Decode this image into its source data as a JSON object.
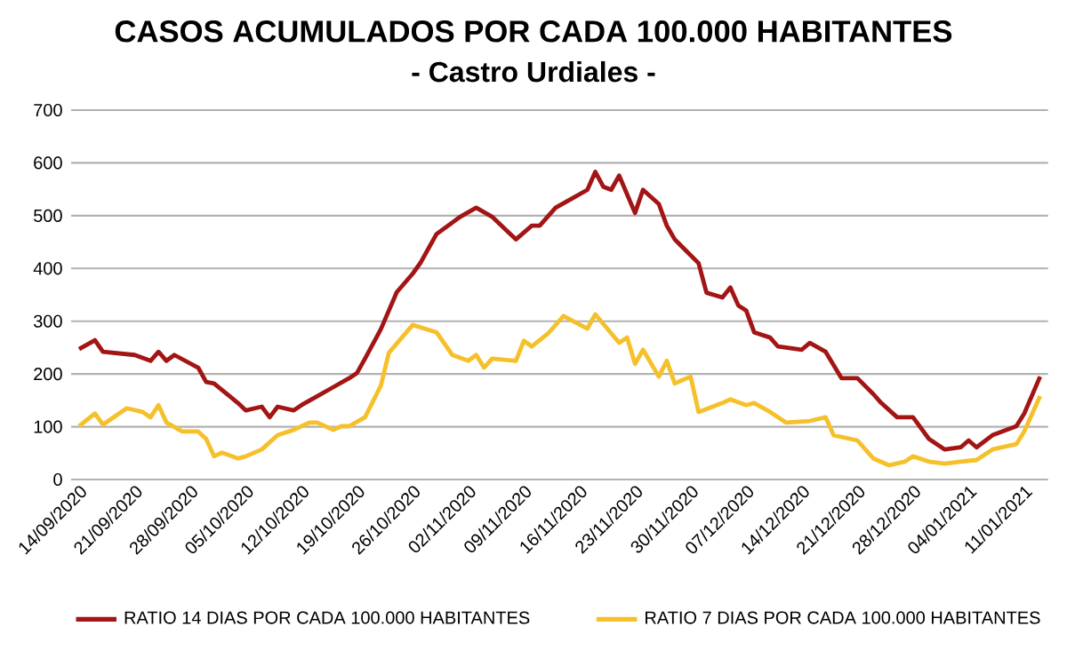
{
  "chart_data": {
    "type": "line",
    "title": "CASOS ACUMULADOS POR CADA 100.000 HABITANTES",
    "subtitle": "- Castro Urdiales -",
    "xlim": [
      "2020-09-13",
      "2021-01-14"
    ],
    "xticks": [
      {
        "value": "2020-09-14",
        "label": "14/09/2020"
      },
      {
        "value": "2020-09-21",
        "label": "21/09/2020"
      },
      {
        "value": "2020-09-28",
        "label": "28/09/2020"
      },
      {
        "value": "2020-10-05",
        "label": "05/10/2020"
      },
      {
        "value": "2020-10-12",
        "label": "12/10/2020"
      },
      {
        "value": "2020-10-19",
        "label": "19/10/2020"
      },
      {
        "value": "2020-10-26",
        "label": "26/10/2020"
      },
      {
        "value": "2020-11-02",
        "label": "02/11/2020"
      },
      {
        "value": "2020-11-09",
        "label": "09/11/2020"
      },
      {
        "value": "2020-11-16",
        "label": "16/11/2020"
      },
      {
        "value": "2020-11-23",
        "label": "23/11/2020"
      },
      {
        "value": "2020-11-30",
        "label": "30/11/2020"
      },
      {
        "value": "2020-12-07",
        "label": "07/12/2020"
      },
      {
        "value": "2020-12-14",
        "label": "14/12/2020"
      },
      {
        "value": "2020-12-21",
        "label": "21/12/2020"
      },
      {
        "value": "2020-12-28",
        "label": "28/12/2020"
      },
      {
        "value": "2021-01-04",
        "label": "04/01/2021"
      },
      {
        "value": "2021-01-11",
        "label": "11/01/2021"
      }
    ],
    "ylim": [
      0,
      700
    ],
    "yticks": [
      0,
      100,
      200,
      300,
      400,
      500,
      600,
      700
    ],
    "grid": "y",
    "legend": "bottom",
    "series": [
      {
        "name": "RATIO 14 DIAS POR CADA 100.000 HABITANTES",
        "color": "#a31515",
        "x": [
          "2020-09-14",
          "2020-09-16",
          "2020-09-17",
          "2020-09-21",
          "2020-09-23",
          "2020-09-24",
          "2020-09-25",
          "2020-09-26",
          "2020-09-29",
          "2020-09-30",
          "2020-10-01",
          "2020-10-04",
          "2020-10-05",
          "2020-10-07",
          "2020-10-08",
          "2020-10-09",
          "2020-10-11",
          "2020-10-12",
          "2020-10-14",
          "2020-10-16",
          "2020-10-18",
          "2020-10-19",
          "2020-10-20",
          "2020-10-22",
          "2020-10-24",
          "2020-10-26",
          "2020-10-27",
          "2020-10-29",
          "2020-11-01",
          "2020-11-03",
          "2020-11-05",
          "2020-11-08",
          "2020-11-10",
          "2020-11-11",
          "2020-11-13",
          "2020-11-15",
          "2020-11-17",
          "2020-11-18",
          "2020-11-19",
          "2020-11-20",
          "2020-11-21",
          "2020-11-23",
          "2020-11-24",
          "2020-11-26",
          "2020-11-27",
          "2020-11-28",
          "2020-12-01",
          "2020-12-02",
          "2020-12-04",
          "2020-12-05",
          "2020-12-06",
          "2020-12-07",
          "2020-12-08",
          "2020-12-10",
          "2020-12-11",
          "2020-12-14",
          "2020-12-15",
          "2020-12-17",
          "2020-12-19",
          "2020-12-21",
          "2020-12-23",
          "2020-12-24",
          "2020-12-26",
          "2020-12-28",
          "2020-12-30",
          "2021-01-01",
          "2021-01-03",
          "2021-01-04",
          "2021-01-05",
          "2021-01-07",
          "2021-01-10",
          "2021-01-11",
          "2021-01-13"
        ],
        "values": [
          247,
          264,
          242,
          236,
          225,
          242,
          225,
          236,
          212,
          185,
          182,
          145,
          131,
          138,
          118,
          138,
          131,
          141,
          158,
          175,
          192,
          202,
          229,
          285,
          355,
          390,
          411,
          465,
          498,
          515,
          498,
          455,
          481,
          481,
          515,
          532,
          549,
          583,
          555,
          549,
          576,
          505,
          549,
          522,
          481,
          455,
          410,
          354,
          345,
          364,
          330,
          320,
          279,
          269,
          252,
          246,
          259,
          242,
          192,
          192,
          162,
          145,
          118,
          118,
          77,
          57,
          61,
          74,
          61,
          84,
          101,
          125,
          195
        ]
      },
      {
        "name": "RATIO 7 DIAS POR CADA 100.000 HABITANTES",
        "color": "#f5c02a",
        "x": [
          "2020-09-14",
          "2020-09-16",
          "2020-09-17",
          "2020-09-20",
          "2020-09-22",
          "2020-09-23",
          "2020-09-24",
          "2020-09-25",
          "2020-09-27",
          "2020-09-29",
          "2020-09-30",
          "2020-10-01",
          "2020-10-02",
          "2020-10-04",
          "2020-10-05",
          "2020-10-07",
          "2020-10-09",
          "2020-10-11",
          "2020-10-13",
          "2020-10-14",
          "2020-10-16",
          "2020-10-17",
          "2020-10-18",
          "2020-10-20",
          "2020-10-22",
          "2020-10-23",
          "2020-10-26",
          "2020-10-29",
          "2020-10-31",
          "2020-11-02",
          "2020-11-03",
          "2020-11-04",
          "2020-11-05",
          "2020-11-08",
          "2020-11-09",
          "2020-11-10",
          "2020-11-12",
          "2020-11-14",
          "2020-11-17",
          "2020-11-18",
          "2020-11-21",
          "2020-11-22",
          "2020-11-23",
          "2020-11-24",
          "2020-11-26",
          "2020-11-27",
          "2020-11-28",
          "2020-11-30",
          "2020-12-01",
          "2020-12-04",
          "2020-12-05",
          "2020-12-07",
          "2020-12-08",
          "2020-12-10",
          "2020-12-12",
          "2020-12-15",
          "2020-12-17",
          "2020-12-18",
          "2020-12-21",
          "2020-12-23",
          "2020-12-25",
          "2020-12-27",
          "2020-12-28",
          "2020-12-30",
          "2021-01-01",
          "2021-01-03",
          "2021-01-05",
          "2021-01-07",
          "2021-01-10",
          "2021-01-11",
          "2021-01-13"
        ],
        "values": [
          101,
          125,
          104,
          135,
          128,
          118,
          141,
          108,
          91,
          91,
          77,
          44,
          51,
          40,
          44,
          57,
          84,
          94,
          108,
          108,
          94,
          101,
          101,
          118,
          178,
          240,
          293,
          279,
          236,
          225,
          236,
          212,
          229,
          225,
          263,
          252,
          276,
          310,
          286,
          313,
          259,
          269,
          219,
          246,
          195,
          225,
          182,
          195,
          128,
          145,
          152,
          141,
          145,
          128,
          108,
          111,
          118,
          84,
          74,
          40,
          27,
          34,
          44,
          34,
          30,
          34,
          37,
          57,
          67,
          91,
          158
        ]
      }
    ]
  }
}
